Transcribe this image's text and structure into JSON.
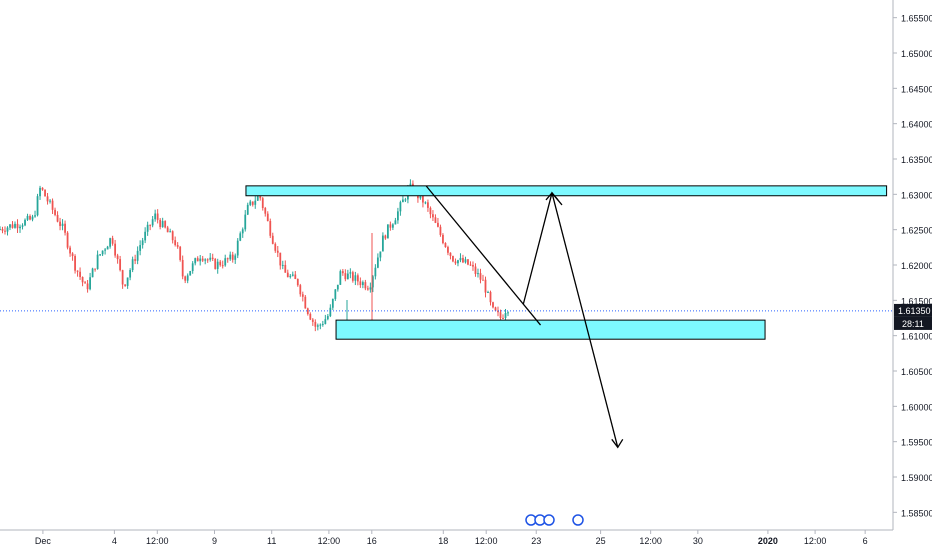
{
  "chart_data": {
    "type": "candlestick",
    "symbol": "",
    "x_tick_labels": [
      "Dec",
      "4",
      "12:00",
      "9",
      "11",
      "12:00",
      "16",
      "18",
      "12:00",
      "23",
      "25",
      "12:00",
      "30",
      "2020",
      "12:00",
      "6"
    ],
    "y_tick_labels": [
      "1.65500",
      "1.65000",
      "1.64500",
      "1.64000",
      "1.63500",
      "1.63000",
      "1.62500",
      "1.62000",
      "1.61500",
      "1.61000",
      "1.60500",
      "1.60000",
      "1.59500",
      "1.59000",
      "1.58500"
    ],
    "ylim": [
      1.5825,
      1.6575
    ],
    "current_price_label": "1.61350",
    "countdown_label": "28:11",
    "current_price": 1.6135,
    "price_path": [
      [
        0.0,
        1.625
      ],
      [
        2.5,
        1.6265
      ],
      [
        3.0,
        1.631
      ],
      [
        3.8,
        1.628
      ],
      [
        4.6,
        1.625
      ],
      [
        5.4,
        1.62
      ],
      [
        6.2,
        1.6165
      ],
      [
        7.0,
        1.621
      ],
      [
        8.0,
        1.624
      ],
      [
        8.8,
        1.617
      ],
      [
        10.0,
        1.623
      ],
      [
        11.0,
        1.627
      ],
      [
        12.5,
        1.623
      ],
      [
        13.0,
        1.618
      ],
      [
        14.2,
        1.6215
      ],
      [
        15.2,
        1.62
      ],
      [
        16.5,
        1.621
      ],
      [
        17.5,
        1.628
      ],
      [
        18.3,
        1.63
      ],
      [
        19.2,
        1.624
      ],
      [
        20.0,
        1.619
      ],
      [
        21.0,
        1.6175
      ],
      [
        21.6,
        1.614
      ],
      [
        22.3,
        1.611
      ],
      [
        23.2,
        1.613
      ],
      [
        24.0,
        1.619
      ],
      [
        25.0,
        1.618
      ],
      [
        26.0,
        1.617
      ],
      [
        27.0,
        1.624
      ],
      [
        28.0,
        1.6275
      ],
      [
        28.8,
        1.631
      ],
      [
        29.8,
        1.629
      ],
      [
        30.8,
        1.625
      ],
      [
        31.8,
        1.621
      ],
      [
        33.0,
        1.62
      ],
      [
        34.0,
        1.6175
      ],
      [
        34.6,
        1.6135
      ],
      [
        35.2,
        1.6125
      ],
      [
        35.6,
        1.614
      ]
    ],
    "zones": [
      {
        "name": "resistance-zone",
        "x_start": 17.2,
        "x_end": 62.0,
        "y_low": 1.6298,
        "y_high": 1.6312,
        "color": "#7df9ff"
      },
      {
        "name": "support-zone",
        "x_start": 23.5,
        "x_end": 53.5,
        "y_low": 1.6095,
        "y_high": 1.6122,
        "color": "#7df9ff"
      }
    ],
    "trendline": {
      "from": [
        29.8,
        1.6312
      ],
      "to": [
        37.8,
        1.6115
      ]
    },
    "projection_up": [
      [
        36.6,
        1.6145
      ],
      [
        38.6,
        1.6302
      ],
      [
        39.3,
        1.6285
      ]
    ],
    "projection_down": [
      [
        38.6,
        1.6302
      ],
      [
        43.2,
        1.5942
      ]
    ],
    "colors": {
      "up": "#26a69a",
      "down": "#ef5350",
      "price_line": "#2962ff",
      "zone_fill": "#7df9ff",
      "zone_stroke": "#000000",
      "axis_text": "#131722",
      "grid": "#e0e3eb"
    },
    "x_ticks_index": [
      3,
      8,
      11,
      15,
      19,
      23,
      26,
      31,
      34,
      37.5,
      42,
      45.5,
      48.8,
      53.7,
      57,
      60.5
    ],
    "y_ticks_values": [
      1.655,
      1.65,
      1.645,
      1.64,
      1.635,
      1.63,
      1.625,
      1.62,
      1.615,
      1.61,
      1.605,
      1.6,
      1.595,
      1.59,
      1.585
    ]
  }
}
